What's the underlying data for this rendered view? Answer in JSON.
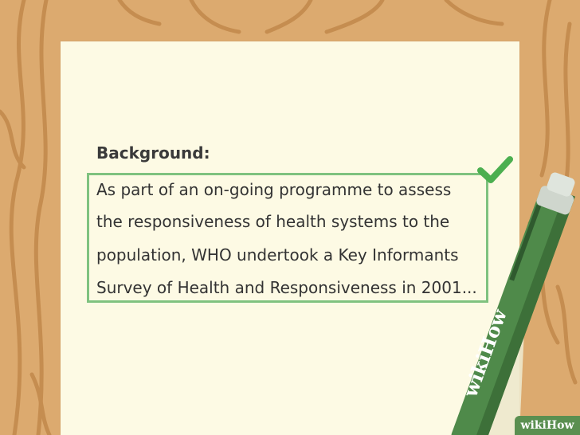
{
  "document": {
    "heading": "Background:",
    "lines": [
      "As part of an on-going programme to assess",
      "the responsiveness of health systems to the",
      "population, WHO undertook a Key Informants",
      "Survey of Health and Responsiveness in 2001..."
    ]
  },
  "pen": {
    "brand": "wikiHow"
  },
  "watermark": {
    "text": "wikiHow"
  },
  "colors": {
    "wood": "#dcaa6f",
    "wood_grain": "#c58d50",
    "paper": "#fdfae4",
    "highlight": "#7fc27f",
    "check": "#4caf50",
    "pen_body": "#4f8a4a",
    "pen_dark": "#2f5a2e"
  },
  "icons": [
    "checkmark-icon",
    "pen-icon"
  ]
}
